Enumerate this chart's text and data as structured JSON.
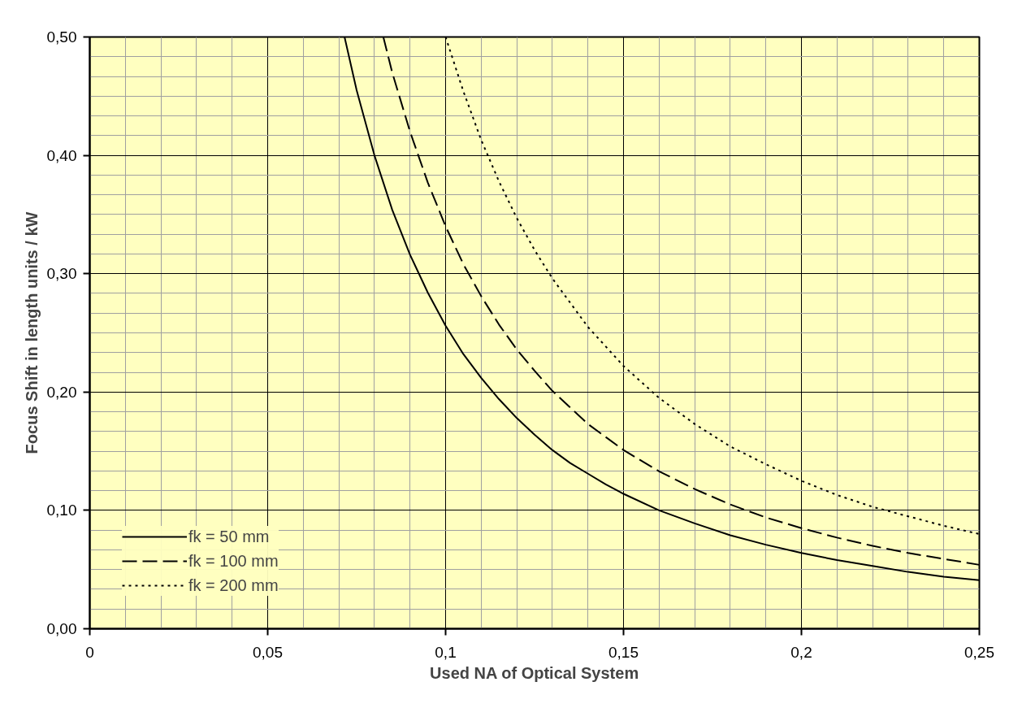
{
  "chart_data": {
    "type": "line",
    "xlabel": "Used NA of Optical System",
    "ylabel": "Focus Shift in length units / kW",
    "xlim": [
      0,
      0.25
    ],
    "ylim": [
      0,
      0.5
    ],
    "xticks": [
      {
        "value": 0,
        "label": "0"
      },
      {
        "value": 0.05,
        "label": "0,05"
      },
      {
        "value": 0.1,
        "label": "0,1"
      },
      {
        "value": 0.15,
        "label": "0,15"
      },
      {
        "value": 0.2,
        "label": "0,2"
      },
      {
        "value": 0.25,
        "label": "0,25"
      }
    ],
    "yticks": [
      {
        "value": 0,
        "label": "0,00"
      },
      {
        "value": 0.1,
        "label": "0,10"
      },
      {
        "value": 0.2,
        "label": "0,20"
      },
      {
        "value": 0.3,
        "label": "0,30"
      },
      {
        "value": 0.4,
        "label": "0,40"
      },
      {
        "value": 0.5,
        "label": "0,50"
      }
    ],
    "grid": true,
    "legend": "bottom left",
    "marker": "none",
    "series": [
      {
        "name": "fk = 50 mm",
        "color": "#000000",
        "line_style": "solid",
        "x": [
          0.0716,
          0.075,
          0.08,
          0.085,
          0.09,
          0.095,
          0.1,
          0.105,
          0.11,
          0.115,
          0.12,
          0.125,
          0.13,
          0.135,
          0.14,
          0.145,
          0.15,
          0.16,
          0.17,
          0.18,
          0.19,
          0.2,
          0.21,
          0.22,
          0.23,
          0.24,
          0.25
        ],
        "values": [
          0.5,
          0.455,
          0.4,
          0.354,
          0.316,
          0.284,
          0.256,
          0.232,
          0.212,
          0.194,
          0.178,
          0.164,
          0.151,
          0.14,
          0.131,
          0.122,
          0.114,
          0.1,
          0.089,
          0.079,
          0.071,
          0.064,
          0.058,
          0.053,
          0.048,
          0.044,
          0.041
        ]
      },
      {
        "name": "fk = 100 mm",
        "color": "#000000",
        "line_style": "dashed",
        "x": [
          0.0825,
          0.085,
          0.09,
          0.095,
          0.1,
          0.105,
          0.11,
          0.115,
          0.12,
          0.125,
          0.13,
          0.14,
          0.15,
          0.16,
          0.17,
          0.18,
          0.19,
          0.2,
          0.21,
          0.22,
          0.23,
          0.24,
          0.25
        ],
        "values": [
          0.5,
          0.47,
          0.42,
          0.377,
          0.34,
          0.308,
          0.281,
          0.257,
          0.236,
          0.218,
          0.201,
          0.173,
          0.151,
          0.133,
          0.118,
          0.105,
          0.094,
          0.085,
          0.077,
          0.07,
          0.064,
          0.059,
          0.054
        ]
      },
      {
        "name": "fk = 200 mm",
        "color": "#000000",
        "line_style": "dotted",
        "x": [
          0.1,
          0.105,
          0.11,
          0.115,
          0.12,
          0.125,
          0.13,
          0.14,
          0.15,
          0.16,
          0.17,
          0.18,
          0.19,
          0.2,
          0.21,
          0.22,
          0.23,
          0.24,
          0.25
        ],
        "values": [
          0.5,
          0.454,
          0.413,
          0.378,
          0.347,
          0.32,
          0.296,
          0.255,
          0.222,
          0.195,
          0.173,
          0.154,
          0.139,
          0.125,
          0.113,
          0.103,
          0.095,
          0.087,
          0.08
        ]
      }
    ]
  }
}
